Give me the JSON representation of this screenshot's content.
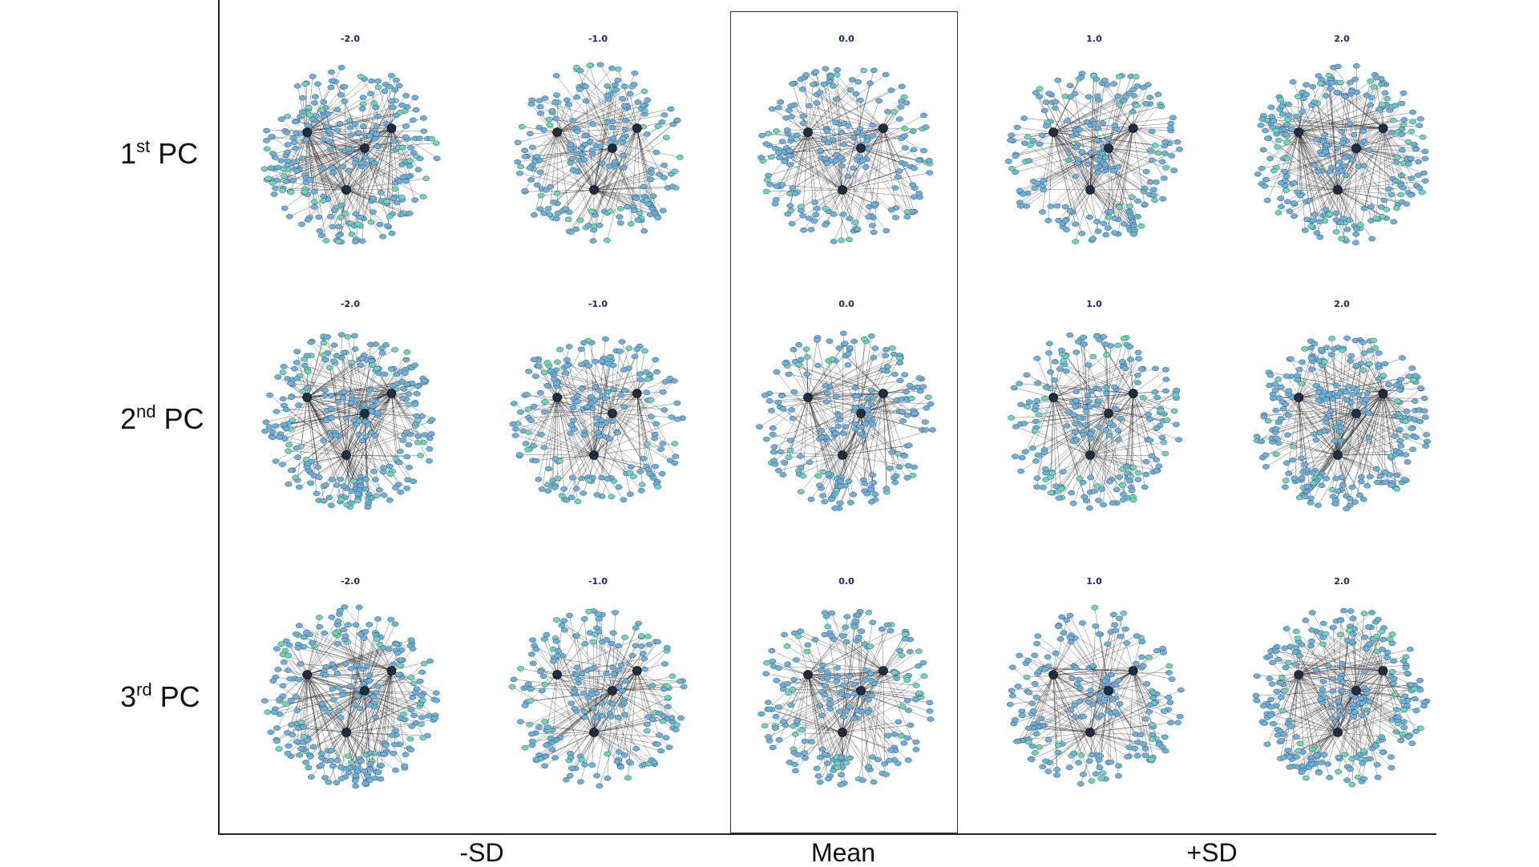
{
  "row_labels": [
    {
      "ordinal": "1",
      "suffix": "st",
      "name": "PC"
    },
    {
      "ordinal": "2",
      "suffix": "nd",
      "name": "PC"
    },
    {
      "ordinal": "3",
      "suffix": "rd",
      "name": "PC"
    }
  ],
  "column_groups": [
    "-SD",
    "Mean",
    "+SD"
  ],
  "cell_titles": [
    "-2.0",
    "-1.0",
    "0.0",
    "1.0",
    "2.0"
  ],
  "colors": {
    "node_fill": "#6fb1d6",
    "node_stroke": "#2f4f6f",
    "node_alt": "#6fd6b3",
    "edge": "#2b2b2b",
    "title": "#1a237e"
  }
}
